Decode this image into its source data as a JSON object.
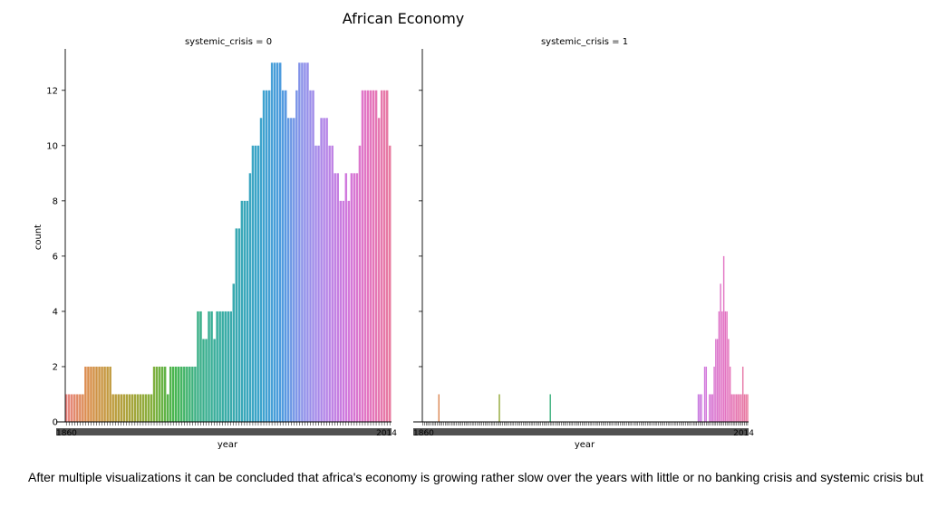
{
  "figure": {
    "title": "African Economy",
    "caption": "After multiple visualizations it can be concluded that africa's economy is growing rather slow over the years with little or no banking crisis and systemic crisis but"
  },
  "chart_data": [
    {
      "type": "bar",
      "title": "systemic_crisis = 0",
      "xlabel": "year",
      "ylabel": "count",
      "ylim": [
        0,
        13.5
      ],
      "yticks": [
        0,
        2,
        4,
        6,
        8,
        10,
        12
      ],
      "categories_range": [
        1860,
        2014
      ],
      "first_tick_label": "1860",
      "last_tick_label": "2014",
      "values": [
        1,
        1,
        1,
        1,
        1,
        1,
        1,
        2,
        2,
        2,
        2,
        2,
        2,
        2,
        2,
        2,
        2,
        1,
        1,
        1,
        1,
        1,
        1,
        1,
        1,
        1,
        1,
        1,
        1,
        1,
        1,
        1,
        2,
        2,
        2,
        2,
        2,
        1,
        2,
        2,
        2,
        2,
        2,
        2,
        2,
        2,
        2,
        2,
        4,
        4,
        3,
        3,
        4,
        4,
        3,
        4,
        4,
        4,
        4,
        4,
        4,
        5,
        7,
        7,
        8,
        8,
        8,
        9,
        10,
        10,
        10,
        11,
        12,
        12,
        12,
        13,
        13,
        13,
        13,
        12,
        12,
        11,
        11,
        11,
        12,
        13,
        13,
        13,
        13,
        12,
        12,
        10,
        10,
        11,
        11,
        11,
        10,
        10,
        9,
        9,
        8,
        8,
        9,
        8,
        9,
        9,
        9,
        10,
        12,
        12,
        12,
        12,
        12,
        12,
        11,
        12,
        12,
        12,
        10
      ]
    },
    {
      "type": "bar",
      "title": "systemic_crisis = 1",
      "xlabel": "year",
      "ylabel": "",
      "ylim": [
        0,
        13.5
      ],
      "categories_range": [
        1860,
        2014
      ],
      "first_tick_label": "1860",
      "last_tick_label": "2014",
      "values": [
        0,
        0,
        0,
        0,
        0,
        0,
        0,
        0,
        0,
        0,
        1,
        0,
        0,
        0,
        0,
        0,
        0,
        0,
        0,
        0,
        0,
        0,
        0,
        0,
        0,
        0,
        0,
        0,
        0,
        0,
        0,
        0,
        0,
        0,
        0,
        0,
        0,
        0,
        0,
        0,
        0,
        0,
        0,
        0,
        0,
        0,
        0,
        0,
        1,
        0,
        0,
        0,
        0,
        0,
        0,
        0,
        0,
        0,
        0,
        0,
        0,
        0,
        0,
        0,
        0,
        0,
        0,
        0,
        0,
        0,
        0,
        0,
        0,
        0,
        0,
        0,
        0,
        0,
        0,
        0,
        1,
        0,
        0,
        0,
        0,
        0,
        0,
        0,
        0,
        0,
        0,
        0,
        0,
        0,
        0,
        0,
        0,
        0,
        0,
        0,
        0,
        0,
        0,
        0,
        0,
        0,
        0,
        0,
        0,
        0,
        0,
        0,
        0,
        0,
        0,
        0,
        0,
        0,
        0,
        0,
        0,
        0,
        0,
        0,
        0,
        0,
        0,
        0,
        0,
        0,
        0,
        0,
        0,
        0,
        0,
        0,
        0,
        0,
        0,
        0,
        0,
        0,
        0,
        0,
        0,
        0,
        0,
        0,
        0,
        0,
        0,
        0,
        0,
        0,
        0,
        0,
        0,
        0,
        0,
        0,
        0,
        0,
        0,
        0,
        0,
        0,
        0,
        0,
        0,
        0,
        0,
        0,
        0,
        1,
        1,
        1,
        0,
        2,
        2,
        0,
        1,
        1,
        1,
        2,
        3,
        3,
        4,
        5,
        4,
        6,
        4,
        4,
        3,
        2,
        1,
        1,
        1,
        1,
        1,
        1,
        1,
        2,
        1,
        1,
        1
      ]
    }
  ]
}
